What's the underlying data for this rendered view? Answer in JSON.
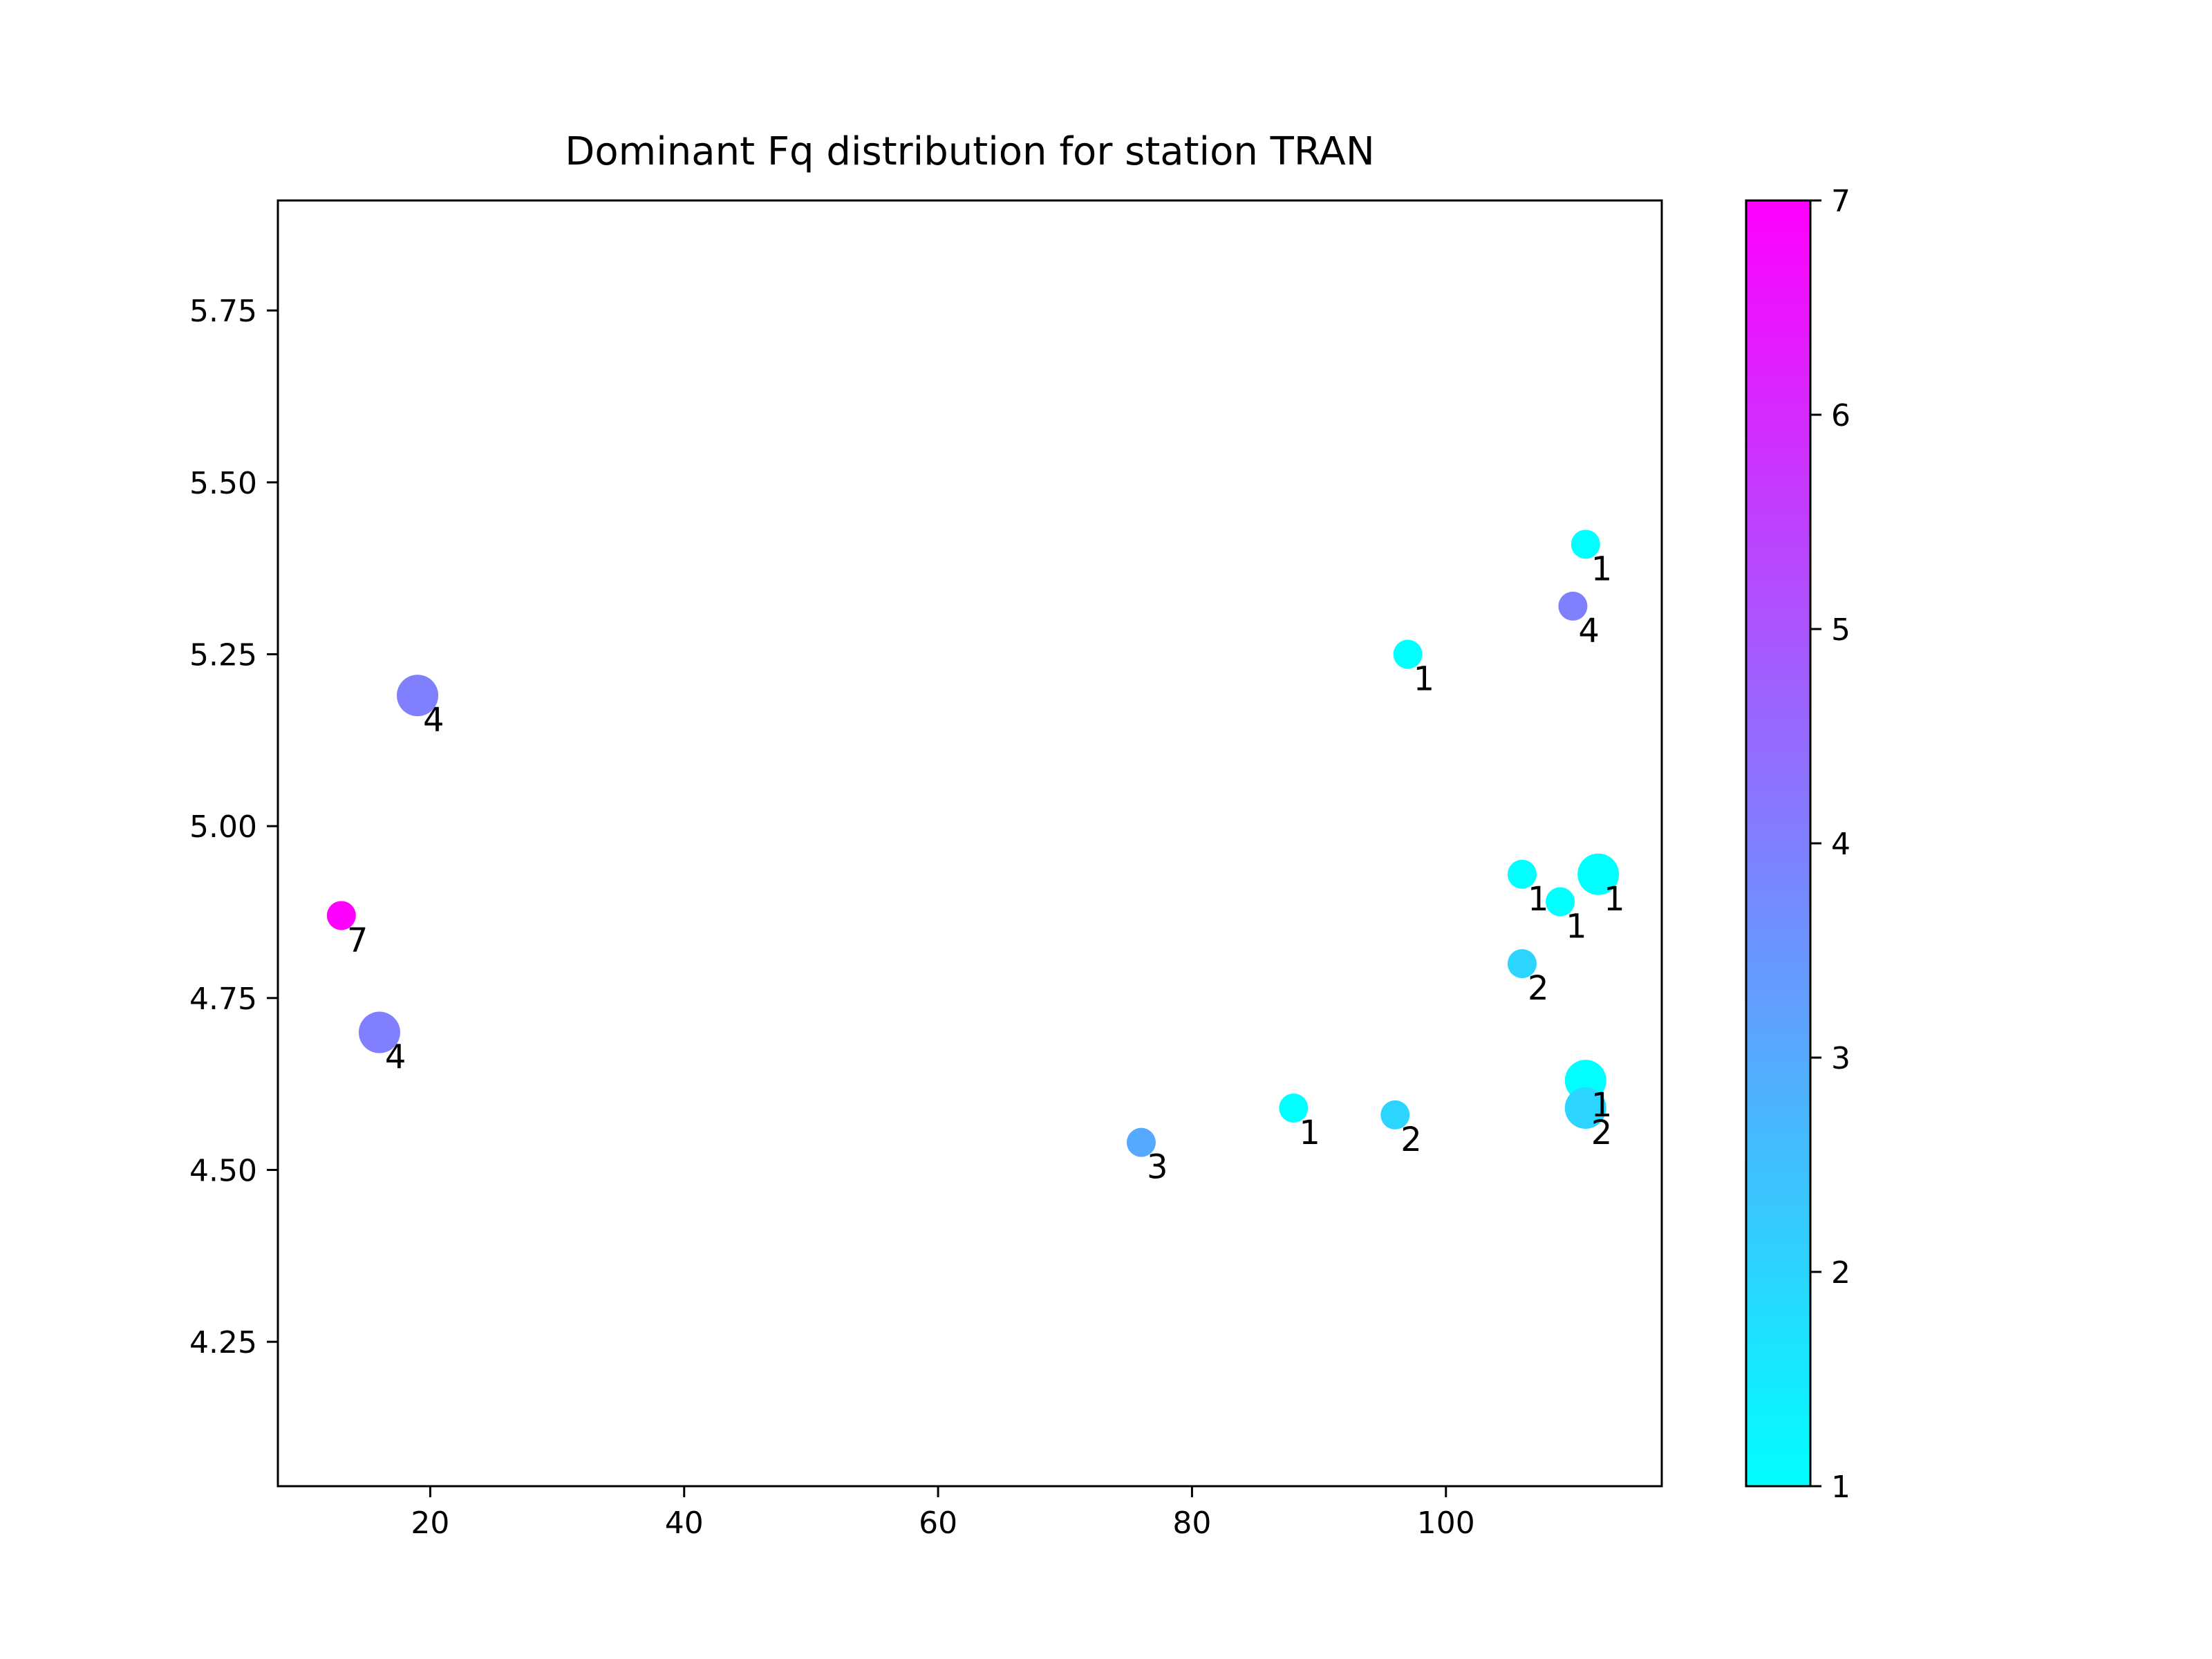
{
  "chart_data": {
    "type": "scatter",
    "title": "Dominant Fq distribution for station TRAN",
    "xlabel": "",
    "ylabel": "",
    "xlim": [
      8,
      117
    ],
    "ylim": [
      4.04,
      5.91
    ],
    "xticks": [
      20,
      40,
      60,
      80,
      100
    ],
    "xtick_labels": [
      "20",
      "40",
      "60",
      "80",
      "100"
    ],
    "yticks": [
      4.25,
      4.5,
      4.75,
      5.0,
      5.25,
      5.5,
      5.75
    ],
    "ytick_labels": [
      "4.25",
      "4.50",
      "4.75",
      "5.00",
      "5.25",
      "5.50",
      "5.75"
    ],
    "grid": false,
    "colormap": "cool",
    "colorbar": {
      "min": 1,
      "max": 7,
      "ticks": [
        1,
        2,
        3,
        4,
        5,
        6,
        7
      ],
      "tick_labels": [
        "1",
        "2",
        "3",
        "4",
        "5",
        "6",
        "7"
      ],
      "color_min": "#00ffff",
      "color_max": "#ff00ff"
    },
    "points": [
      {
        "x": 111,
        "y": 5.41,
        "value": 1,
        "label": "1",
        "size": 1
      },
      {
        "x": 110,
        "y": 5.32,
        "value": 4,
        "label": "4",
        "size": 1
      },
      {
        "x": 97,
        "y": 5.25,
        "value": 1,
        "label": "1",
        "size": 1
      },
      {
        "x": 19,
        "y": 5.19,
        "value": 4,
        "label": "4",
        "size": 2
      },
      {
        "x": 106,
        "y": 4.93,
        "value": 1,
        "label": "1",
        "size": 1
      },
      {
        "x": 112,
        "y": 4.93,
        "value": 1,
        "label": "1",
        "size": 2
      },
      {
        "x": 109,
        "y": 4.89,
        "value": 1,
        "label": "1",
        "size": 1
      },
      {
        "x": 13,
        "y": 4.87,
        "value": 7,
        "label": "7",
        "size": 1
      },
      {
        "x": 106,
        "y": 4.8,
        "value": 2,
        "label": "2",
        "size": 1
      },
      {
        "x": 16,
        "y": 4.7,
        "value": 4,
        "label": "4",
        "size": 2
      },
      {
        "x": 111,
        "y": 4.63,
        "value": 1,
        "label": "1",
        "size": 2
      },
      {
        "x": 111,
        "y": 4.59,
        "value": 2,
        "label": "2",
        "size": 2
      },
      {
        "x": 88,
        "y": 4.59,
        "value": 1,
        "label": "1",
        "size": 1
      },
      {
        "x": 96,
        "y": 4.58,
        "value": 2,
        "label": "2",
        "size": 1
      },
      {
        "x": 76,
        "y": 4.54,
        "value": 3,
        "label": "3",
        "size": 1
      }
    ]
  }
}
